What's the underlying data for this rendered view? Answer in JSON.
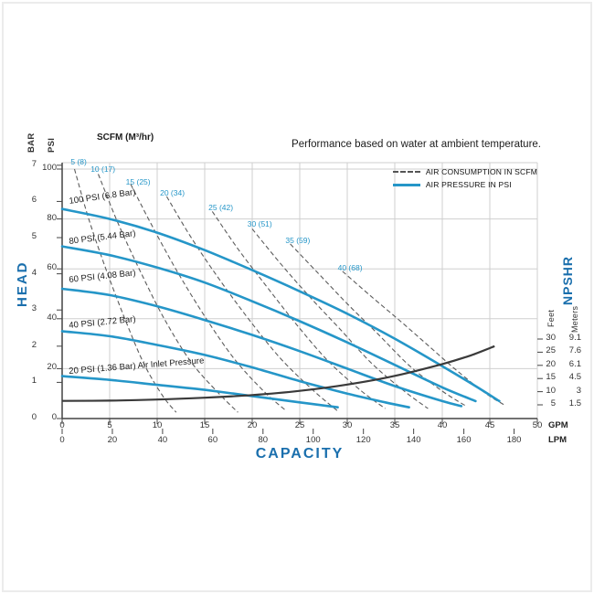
{
  "title_note": "Performance based on water at ambient temperature.",
  "colors": {
    "accent_blue": "#1a6fad",
    "curve_blue": "#2596c8",
    "consumption_gray": "#5c5c5c",
    "npshr_dark": "#3a3a3a",
    "grid": "#cfcfcf",
    "axis": "#444444"
  },
  "axis_titles": {
    "head": "HEAD",
    "capacity": "CAPACITY",
    "npshr": "NPSHR",
    "bar": "BAR",
    "psi": "PSI",
    "feet": "Feet",
    "meters": "Meters",
    "gpm": "GPM",
    "lpm": "LPM",
    "scfm": "SCFM (M³/hr)"
  },
  "legend": {
    "items": [
      {
        "label": "AIR CONSUMPTION IN SCFM",
        "style": "dashed"
      },
      {
        "label": "AIR PRESSURE IN PSI",
        "style": "solid"
      }
    ]
  },
  "chart_data": {
    "type": "line",
    "note": "Performance based on water at ambient temperature.",
    "x_axis": {
      "title": "CAPACITY",
      "primary": {
        "label": "GPM",
        "range": [
          0,
          50
        ],
        "ticks": [
          0,
          5,
          10,
          15,
          20,
          25,
          30,
          35,
          40,
          45,
          50
        ]
      },
      "secondary": {
        "label": "LPM",
        "range": [
          0,
          180
        ],
        "ticks": [
          0,
          20,
          40,
          60,
          80,
          100,
          120,
          140,
          160,
          180
        ]
      }
    },
    "y_axis": {
      "title": "HEAD",
      "primary": {
        "label": "PSI",
        "range": [
          0,
          100
        ],
        "ticks": [
          0,
          20,
          40,
          60,
          80,
          100
        ]
      },
      "secondary": {
        "label": "BAR",
        "range": [
          0,
          7
        ],
        "ticks": [
          0,
          1,
          2,
          3,
          4,
          5,
          6,
          7
        ]
      }
    },
    "right_axis": {
      "title": "NPSHR",
      "ticks": [
        {
          "feet": 30,
          "meters": "9.1"
        },
        {
          "feet": 25,
          "meters": "7.6"
        },
        {
          "feet": 20,
          "meters": "6.1"
        },
        {
          "feet": 15,
          "meters": "4.5"
        },
        {
          "feet": 10,
          "meters": "3"
        },
        {
          "feet": 5,
          "meters": "1.5"
        }
      ]
    },
    "pressure_curves": [
      {
        "label": "100 PSI (6.8 Bar)",
        "label_anchor": {
          "gpm": 0.7,
          "psi": 88.5,
          "rot": -8
        },
        "points": [
          [
            0,
            84
          ],
          [
            5,
            80
          ],
          [
            10,
            74.5
          ],
          [
            15,
            67.5
          ],
          [
            20,
            59.5
          ],
          [
            25,
            51
          ],
          [
            30,
            42
          ],
          [
            35,
            32
          ],
          [
            40,
            21
          ],
          [
            43.5,
            13
          ],
          [
            46,
            7
          ]
        ]
      },
      {
        "label": "80 PSI (5.44 Bar)",
        "label_anchor": {
          "gpm": 0.7,
          "psi": 72.5,
          "rot": -7
        },
        "points": [
          [
            0,
            69
          ],
          [
            5,
            65.5
          ],
          [
            10,
            60.5
          ],
          [
            15,
            54.5
          ],
          [
            20,
            47
          ],
          [
            25,
            39
          ],
          [
            30,
            30.5
          ],
          [
            35,
            21.5
          ],
          [
            40,
            12.5
          ],
          [
            43.5,
            7
          ]
        ]
      },
      {
        "label": "60 PSI (4.08 Bar)",
        "label_anchor": {
          "gpm": 0.7,
          "psi": 57,
          "rot": -6
        },
        "points": [
          [
            0,
            52
          ],
          [
            5,
            49.5
          ],
          [
            10,
            45
          ],
          [
            15,
            39.5
          ],
          [
            20,
            33.5
          ],
          [
            25,
            27
          ],
          [
            30,
            20
          ],
          [
            35,
            13
          ],
          [
            40,
            7
          ],
          [
            42,
            5
          ]
        ]
      },
      {
        "label": "40 PSI (2.72 Bar)",
        "label_anchor": {
          "gpm": 0.7,
          "psi": 39,
          "rot": -5.5
        },
        "points": [
          [
            0,
            35
          ],
          [
            5,
            33
          ],
          [
            10,
            29.5
          ],
          [
            15,
            25.5
          ],
          [
            20,
            20.5
          ],
          [
            25,
            15
          ],
          [
            30,
            10
          ],
          [
            34,
            6.5
          ],
          [
            36.5,
            4.5
          ]
        ]
      },
      {
        "label": "20 PSI (1.36 Bar) Air Inlet Pressure",
        "label_anchor": {
          "gpm": 0.7,
          "psi": 20.5,
          "rot": -4.5
        },
        "points": [
          [
            0,
            17
          ],
          [
            5,
            15.5
          ],
          [
            10,
            13.5
          ],
          [
            15,
            11.5
          ],
          [
            20,
            9
          ],
          [
            25,
            6.5
          ],
          [
            29,
            4.5
          ]
        ]
      }
    ],
    "consumption_curves": [
      {
        "label": "5 (8)",
        "label_anchor": {
          "gpm": 0.9,
          "psi": 104.5
        },
        "points": [
          [
            1.3,
            100
          ],
          [
            2.8,
            80
          ],
          [
            4.6,
            60
          ],
          [
            6.6,
            40
          ],
          [
            8.6,
            22
          ],
          [
            10.6,
            9
          ],
          [
            12,
            2.5
          ]
        ]
      },
      {
        "label": "10 (17)",
        "label_anchor": {
          "gpm": 3.0,
          "psi": 101.5
        },
        "points": [
          [
            3.8,
            98
          ],
          [
            5.8,
            79
          ],
          [
            8.1,
            60
          ],
          [
            10.6,
            41
          ],
          [
            13.5,
            23
          ],
          [
            16.5,
            10
          ],
          [
            18.5,
            2.5
          ]
        ]
      },
      {
        "label": "15 (25)",
        "label_anchor": {
          "gpm": 6.7,
          "psi": 96.5
        },
        "points": [
          [
            7.2,
            94
          ],
          [
            9.5,
            77
          ],
          [
            12.1,
            59
          ],
          [
            15,
            41
          ],
          [
            18.1,
            24
          ],
          [
            21.2,
            11
          ],
          [
            23.6,
            3
          ]
        ]
      },
      {
        "label": "20 (34)",
        "label_anchor": {
          "gpm": 10.3,
          "psi": 92
        },
        "points": [
          [
            11,
            89
          ],
          [
            13.5,
            73
          ],
          [
            16.5,
            56
          ],
          [
            19.6,
            40
          ],
          [
            23,
            24
          ],
          [
            26.5,
            11
          ],
          [
            29,
            3
          ]
        ]
      },
      {
        "label": "25 (42)",
        "label_anchor": {
          "gpm": 15.4,
          "psi": 86
        },
        "points": [
          [
            15.8,
            83
          ],
          [
            18.5,
            68
          ],
          [
            21.5,
            53
          ],
          [
            24.6,
            38
          ],
          [
            28,
            23
          ],
          [
            31.5,
            11
          ],
          [
            34,
            4
          ]
        ]
      },
      {
        "label": "30 (51)",
        "label_anchor": {
          "gpm": 19.5,
          "psi": 79.5
        },
        "points": [
          [
            20,
            76
          ],
          [
            23,
            62
          ],
          [
            26,
            49
          ],
          [
            29.2,
            36
          ],
          [
            32.6,
            22
          ],
          [
            36,
            11
          ],
          [
            38.5,
            4
          ]
        ]
      },
      {
        "label": "35 (59)",
        "label_anchor": {
          "gpm": 23.5,
          "psi": 73
        },
        "points": [
          [
            24,
            70
          ],
          [
            27,
            58
          ],
          [
            30,
            46
          ],
          [
            33.2,
            34
          ],
          [
            36.6,
            21
          ],
          [
            40,
            11
          ],
          [
            42.5,
            5
          ]
        ]
      },
      {
        "label": "40 (68)",
        "label_anchor": {
          "gpm": 29,
          "psi": 62
        },
        "points": [
          [
            29.5,
            59
          ],
          [
            32.5,
            49
          ],
          [
            35.6,
            39
          ],
          [
            38.6,
            29
          ],
          [
            41.6,
            19
          ],
          [
            44.6,
            10
          ],
          [
            46.5,
            5.5
          ]
        ]
      }
    ],
    "npshr_curve": {
      "units": "gpm_vs_feet",
      "points": [
        [
          0,
          6.5
        ],
        [
          5,
          6.6
        ],
        [
          10,
          7
        ],
        [
          15,
          7.7
        ],
        [
          20,
          8.7
        ],
        [
          25,
          10.3
        ],
        [
          30,
          12.7
        ],
        [
          35,
          16
        ],
        [
          40,
          20.5
        ],
        [
          43,
          23.8
        ],
        [
          45.5,
          27.3
        ]
      ]
    }
  }
}
